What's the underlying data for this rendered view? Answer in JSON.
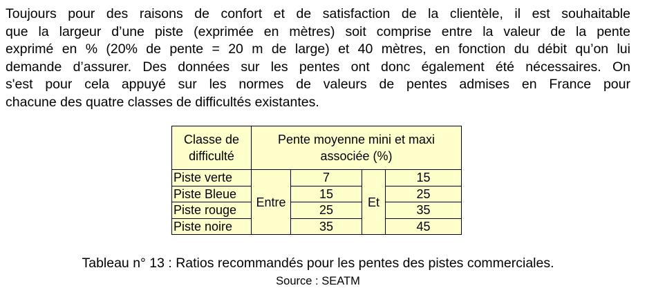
{
  "paragraph_lines": [
    "Toujours pour des raisons de confort et de satisfaction de la clientèle, il est souhaitable",
    "que la largeur d’une piste (exprimée en mètres) soit comprise entre la valeur de la pente",
    "exprimé en % (20% de pente = 20 m de large) et 40 mètres, en fonction du débit qu’on lui",
    "demande d’assurer. Des données sur les pentes ont donc également été nécessaires. On",
    "s'est pour cela appuyé sur les normes de valeurs de pentes admises en France pour",
    "chacune des quatre classes de difficultés existantes."
  ],
  "table": {
    "header_class": "Classe de difficulté",
    "header_pente": "Pente moyenne mini et maxi associée (%)",
    "between_label": "Entre",
    "and_label": "Et",
    "rows": [
      {
        "class": "Piste verte",
        "min": "7",
        "max": "15"
      },
      {
        "class": "Piste Bleue",
        "min": "15",
        "max": "25"
      },
      {
        "class": "Piste rouge",
        "min": "25",
        "max": "35"
      },
      {
        "class": "Piste noire",
        "min": "35",
        "max": "45"
      }
    ],
    "background_color": "#FFFFCC"
  },
  "caption": "Tableau n° 13 : Ratios recommandés pour les pentes  des pistes commerciales.",
  "source": "Source : SEATM"
}
